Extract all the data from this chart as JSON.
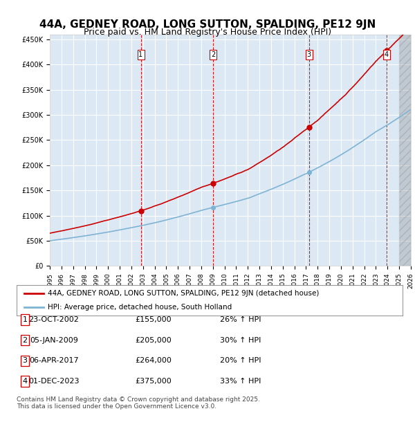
{
  "title_line1": "44A, GEDNEY ROAD, LONG SUTTON, SPALDING, PE12 9JN",
  "title_line2": "Price paid vs. HM Land Registry's House Price Index (HPI)",
  "legend_label1": "44A, GEDNEY ROAD, LONG SUTTON, SPALDING, PE12 9JN (detached house)",
  "legend_label2": "HPI: Average price, detached house, South Holland",
  "footer1": "Contains HM Land Registry data © Crown copyright and database right 2025.",
  "footer2": "This data is licensed under the Open Government Licence v3.0.",
  "transactions": [
    {
      "num": 1,
      "date": "23-OCT-2002",
      "year": 2002.81,
      "price": 155000,
      "pct": "26%",
      "dir": "↑"
    },
    {
      "num": 2,
      "date": "05-JAN-2009",
      "year": 2009.02,
      "price": 205000,
      "pct": "30%",
      "dir": "↑"
    },
    {
      "num": 3,
      "date": "06-APR-2017",
      "year": 2017.26,
      "price": 264000,
      "pct": "20%",
      "dir": "↑"
    },
    {
      "num": 4,
      "date": "01-DEC-2023",
      "year": 2023.92,
      "price": 375000,
      "pct": "33%",
      "dir": "↑"
    }
  ],
  "hpi_color": "#7fb3d3",
  "price_color": "#cc0000",
  "dashed_color": "#cc0000",
  "marker_color": "#cc0000",
  "ylim": [
    0,
    460000
  ],
  "xlim_min": 1995,
  "xlim_max": 2026,
  "background_color": "#dce9f5",
  "plot_bg": "#dce9f5",
  "grid_color": "#ffffff",
  "title_fontsize": 11,
  "subtitle_fontsize": 9.5
}
